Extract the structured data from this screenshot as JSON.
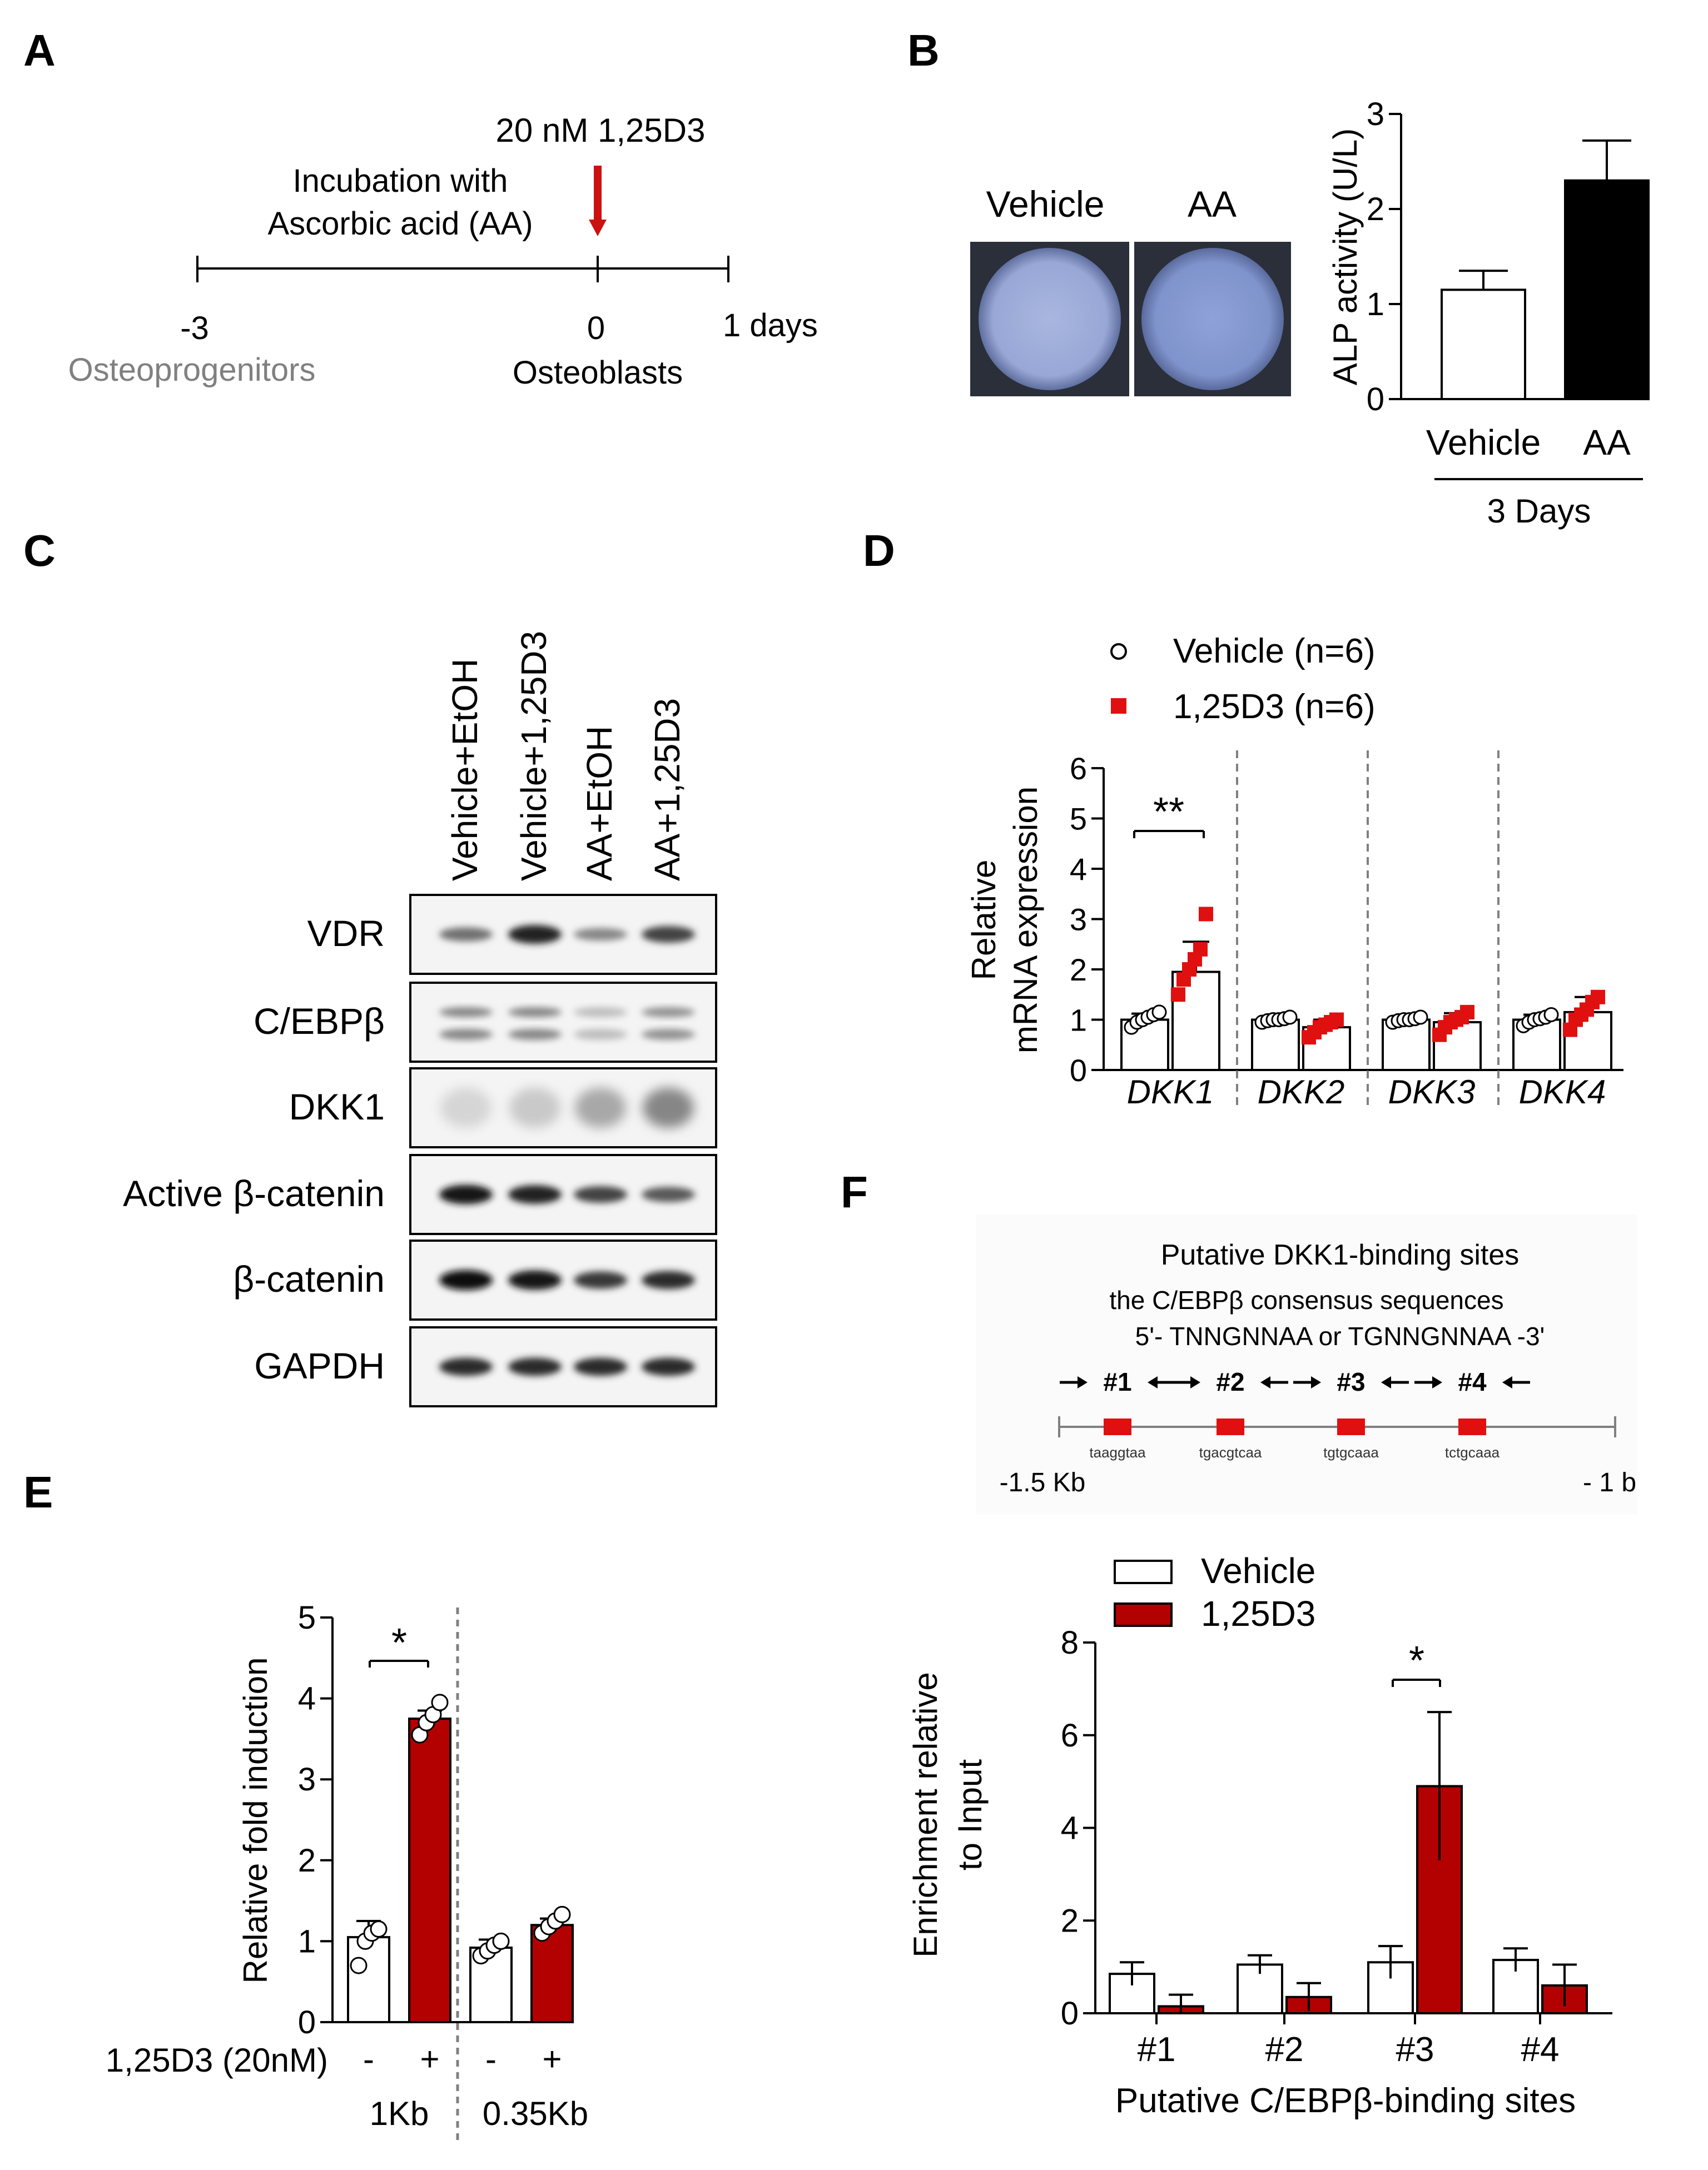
{
  "panels": {
    "A": "A",
    "B": "B",
    "C": "C",
    "D": "D",
    "E": "E",
    "F": "F"
  },
  "colors": {
    "dark_red": "#b30000",
    "red": "#e01010",
    "black": "#000000",
    "gray": "#808080",
    "blot_bg": "#f4f4f4",
    "well_blue": "#8ea0d4"
  },
  "panel_a": {
    "treatment": "20 nM 1,25D3",
    "incubation_line1": "Incubation  with",
    "incubation_line2": "Ascorbic acid (AA)",
    "tick_minus3": "-3",
    "tick_0": "0",
    "tick_1": "1 days",
    "label_osteoprogenitors": "Osteoprogenitors",
    "label_osteoblasts": "Osteoblasts"
  },
  "panel_b": {
    "well_vehicle": "Vehicle",
    "well_aa": "AA",
    "bracket_label": "3 Days"
  },
  "panel_c": {
    "lanes": [
      "Vehicle+EtOH",
      "Vehicle+1,25D3",
      "AA+EtOH",
      "AA+1,25D3"
    ],
    "blots": [
      {
        "label": "VDR",
        "intensity": [
          0.55,
          0.9,
          0.45,
          0.75
        ]
      },
      {
        "label": "C/EBPβ",
        "intensity": [
          0.45,
          0.45,
          0.2,
          0.4
        ]
      },
      {
        "label": "DKK1",
        "intensity": [
          0.1,
          0.15,
          0.3,
          0.45
        ]
      },
      {
        "label": "Active β-catenin",
        "intensity": [
          0.95,
          0.9,
          0.75,
          0.65
        ]
      },
      {
        "label": "β-catenin",
        "intensity": [
          1.0,
          0.95,
          0.8,
          0.85
        ]
      },
      {
        "label": "GAPDH",
        "intensity": [
          0.85,
          0.85,
          0.85,
          0.85
        ]
      }
    ]
  },
  "panel_f_schematic": {
    "title": "Putative DKK1-binding sites",
    "subtitle": "the C/EBPβ consensus sequences",
    "consensus": "5'- TNNGNNAA or TGNNGNNAA -3'",
    "sites": [
      "#1",
      "#2",
      "#3",
      "#4"
    ],
    "sequences": [
      "taaggtaa",
      "tgacgtcaa",
      "tgtgcaaa",
      "tctgcaaa"
    ],
    "start": "-1.5 Kb",
    "end": "- 1 b"
  },
  "chart_data": [
    {
      "id": "B",
      "type": "bar",
      "categories": [
        "Vehicle",
        "AA"
      ],
      "values": [
        1.15,
        2.3
      ],
      "errors": [
        0.2,
        0.42
      ],
      "ylabel": "ALP activity (U/L)",
      "ylim": [
        0,
        3
      ],
      "yticks": [
        "0",
        "1",
        "2",
        "3"
      ]
    },
    {
      "id": "D",
      "type": "bar",
      "categories": [
        "DKK1",
        "DKK2",
        "DKK3",
        "DKK4"
      ],
      "series": [
        {
          "name": "Vehicle (n=6)",
          "values": [
            1.0,
            1.0,
            1.0,
            1.0
          ],
          "errors": [
            0.12,
            0.05,
            0.05,
            0.1
          ],
          "points": [
            [
              0.85,
              0.95,
              1.0,
              1.05,
              1.1,
              1.15
            ],
            [
              0.95,
              0.98,
              1.0,
              1.0,
              1.02,
              1.05
            ],
            [
              0.95,
              0.98,
              1.0,
              1.0,
              1.02,
              1.05
            ],
            [
              0.88,
              0.95,
              1.0,
              1.02,
              1.05,
              1.1
            ]
          ]
        },
        {
          "name": "1,25D3 (n=6)",
          "values": [
            1.95,
            0.85,
            0.95,
            1.15
          ],
          "errors": [
            0.6,
            0.15,
            0.18,
            0.3
          ],
          "points": [
            [
              1.5,
              1.8,
              2.0,
              2.2,
              2.4,
              3.1
            ],
            [
              0.65,
              0.75,
              0.85,
              0.9,
              0.95,
              1.0
            ],
            [
              0.7,
              0.85,
              0.95,
              1.0,
              1.05,
              1.15
            ],
            [
              0.8,
              1.0,
              1.1,
              1.2,
              1.35,
              1.45
            ]
          ]
        }
      ],
      "ylabel_line1": "Relative",
      "ylabel_line2": "mRNA expression",
      "ylim": [
        0,
        6
      ],
      "yticks": [
        "0",
        "1",
        "2",
        "3",
        "4",
        "5",
        "6"
      ],
      "significance": "**"
    },
    {
      "id": "E",
      "type": "bar",
      "categories": [
        "-",
        "+",
        "-",
        "+"
      ],
      "groups": [
        "1Kb",
        "0.35Kb"
      ],
      "values": [
        1.05,
        3.75,
        0.92,
        1.2
      ],
      "errors": [
        0.2,
        0.1,
        0.1,
        0.08
      ],
      "points": [
        [
          0.7,
          1.0,
          1.1,
          1.15
        ],
        [
          3.55,
          3.7,
          3.8,
          3.95
        ],
        [
          0.82,
          0.88,
          0.95,
          1.0
        ],
        [
          1.1,
          1.18,
          1.25,
          1.33
        ]
      ],
      "ylabel": "Relative fold induction",
      "xlabel": "1,25D3 (20nM)",
      "ylim": [
        0,
        5
      ],
      "yticks": [
        "0",
        "1",
        "2",
        "3",
        "4",
        "5"
      ],
      "significance": "*"
    },
    {
      "id": "F",
      "type": "bar",
      "categories": [
        "#1",
        "#2",
        "#3",
        "#4"
      ],
      "series": [
        {
          "name": "Vehicle",
          "values": [
            0.85,
            1.05,
            1.1,
            1.15
          ],
          "errors": [
            0.25,
            0.2,
            0.35,
            0.25
          ]
        },
        {
          "name": "1,25D3",
          "values": [
            0.15,
            0.35,
            4.9,
            0.6
          ],
          "errors": [
            0.25,
            0.3,
            1.6,
            0.45
          ]
        }
      ],
      "ylabel_line1": "Enrichment relative",
      "ylabel_line2": "to Input",
      "xlabel": "Putative C/EBPβ-binding sites",
      "ylim": [
        0,
        8
      ],
      "yticks": [
        "0",
        "2",
        "4",
        "6",
        "8"
      ],
      "significance": "*"
    }
  ]
}
